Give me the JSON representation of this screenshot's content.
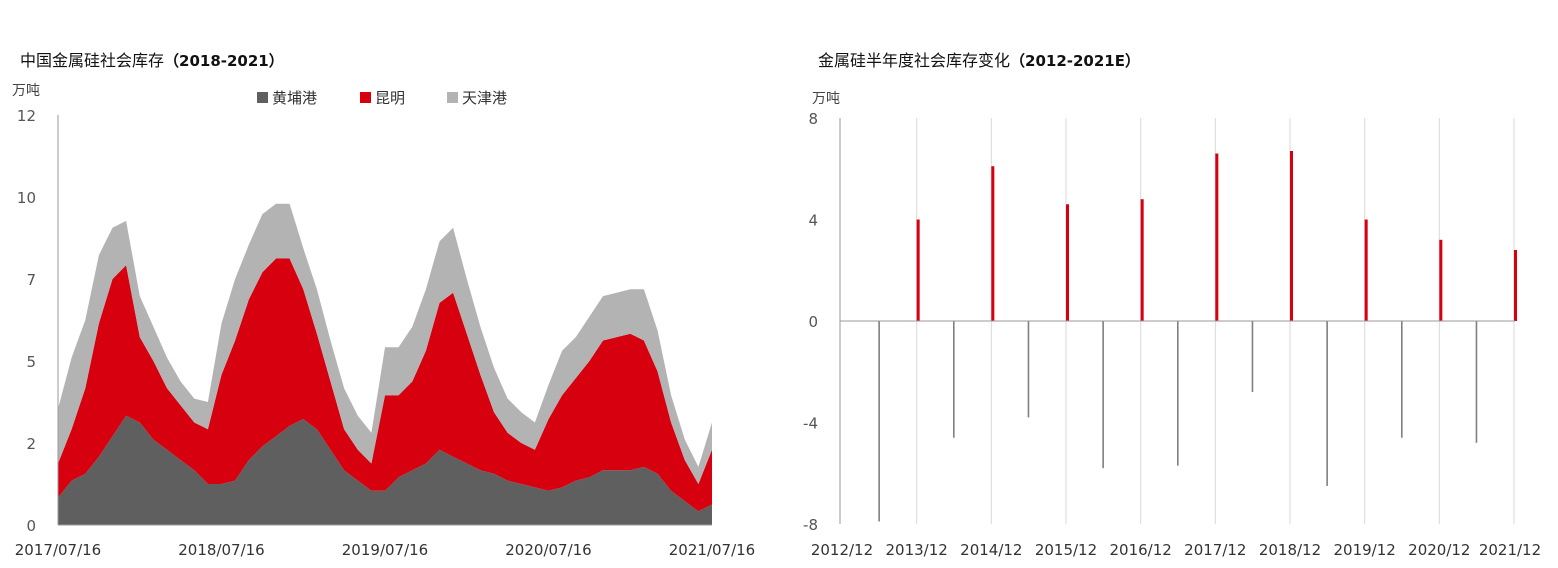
{
  "chart_data": [
    {
      "type": "area",
      "stacked": true,
      "title": "中国金属硅社会库存",
      "title_years": "（2018-2021）",
      "unit": "万吨",
      "ylim": [
        0,
        12
      ],
      "y_ticks": [
        "0",
        "2",
        "5",
        "7",
        "10",
        "12"
      ],
      "y_tick_values": [
        0,
        2.4,
        4.8,
        7.2,
        9.6,
        12
      ],
      "x_ticks": [
        "2017/07/16",
        "2018/07/16",
        "2019/07/16",
        "2020/07/16",
        "2021/07/16"
      ],
      "x_range": [
        "2017/07/16",
        "2021/07/16"
      ],
      "legend_position": "top",
      "x": [
        "2017/07",
        "2017/08",
        "2017/09",
        "2017/10",
        "2017/11",
        "2017/12",
        "2018/01",
        "2018/02",
        "2018/03",
        "2018/04",
        "2018/05",
        "2018/06",
        "2018/07",
        "2018/08",
        "2018/09",
        "2018/10",
        "2018/11",
        "2018/12",
        "2019/01",
        "2019/02",
        "2019/03",
        "2019/04",
        "2019/05",
        "2019/06",
        "2019/07",
        "2019/08",
        "2019/09",
        "2019/10",
        "2019/11",
        "2019/12",
        "2020/01",
        "2020/02",
        "2020/03",
        "2020/04",
        "2020/05",
        "2020/06",
        "2020/07",
        "2020/08",
        "2020/09",
        "2020/10",
        "2020/11",
        "2020/12",
        "2021/01",
        "2021/02",
        "2021/03",
        "2021/04",
        "2021/05",
        "2021/06",
        "2021/07"
      ],
      "series": [
        {
          "name": "黄埔港",
          "color": "#5f5f5f",
          "values": [
            0.8,
            1.3,
            1.5,
            2.0,
            2.6,
            3.2,
            3.0,
            2.5,
            2.2,
            1.9,
            1.6,
            1.2,
            1.2,
            1.3,
            1.9,
            2.3,
            2.6,
            2.9,
            3.1,
            2.8,
            2.2,
            1.6,
            1.3,
            1.0,
            1.0,
            1.4,
            1.6,
            1.8,
            2.2,
            2.0,
            1.8,
            1.6,
            1.5,
            1.3,
            1.2,
            1.1,
            1.0,
            1.1,
            1.3,
            1.4,
            1.6,
            1.6,
            1.6,
            1.7,
            1.5,
            1.0,
            0.7,
            0.4,
            0.6
          ]
        },
        {
          "name": "昆明",
          "color": "#d7000f",
          "values": [
            1.0,
            1.5,
            2.5,
            3.9,
            4.6,
            4.4,
            2.5,
            2.3,
            1.8,
            1.6,
            1.4,
            1.6,
            3.2,
            4.1,
            4.7,
            5.1,
            5.2,
            4.9,
            3.8,
            2.8,
            2.0,
            1.2,
            0.9,
            0.8,
            2.8,
            2.4,
            2.6,
            3.3,
            4.3,
            4.8,
            3.8,
            2.8,
            1.8,
            1.4,
            1.2,
            1.1,
            2.1,
            2.7,
            3.0,
            3.4,
            3.8,
            3.9,
            4.0,
            3.7,
            3.0,
            2.0,
            1.2,
            0.8,
            1.6
          ]
        },
        {
          "name": "天津港",
          "color": "#b3b3b3",
          "values": [
            1.6,
            2.1,
            2.0,
            2.0,
            1.5,
            1.3,
            1.2,
            1.0,
            0.9,
            0.7,
            0.7,
            0.8,
            1.5,
            1.8,
            1.6,
            1.7,
            1.6,
            1.6,
            1.2,
            1.3,
            1.2,
            1.2,
            1.0,
            0.9,
            1.4,
            1.4,
            1.6,
            1.8,
            1.8,
            1.9,
            1.6,
            1.4,
            1.3,
            1.0,
            0.9,
            0.8,
            1.0,
            1.3,
            1.2,
            1.3,
            1.3,
            1.3,
            1.3,
            1.5,
            1.2,
            0.8,
            0.6,
            0.5,
            0.8
          ]
        }
      ]
    },
    {
      "type": "bar",
      "title": "金属硅半年度社会库存变化",
      "title_years": "（2012-2021E）",
      "unit": "万吨",
      "ylim": [
        -8,
        8
      ],
      "y_ticks": [
        "-8",
        "-4",
        "0",
        "4",
        "8"
      ],
      "y_tick_values": [
        -8,
        -4,
        0,
        4,
        8
      ],
      "x_ticks": [
        "2012/12",
        "2013/12",
        "2014/12",
        "2015/12",
        "2016/12",
        "2017/12",
        "2018/12",
        "2019/12",
        "2020/12",
        "2021/12"
      ],
      "categories": [
        "2013/06",
        "2013/12",
        "2014/06",
        "2014/12",
        "2015/06",
        "2015/12",
        "2016/06",
        "2016/12",
        "2017/06",
        "2017/12",
        "2018/06",
        "2018/12",
        "2019/06",
        "2019/12",
        "2020/06",
        "2020/12",
        "2021/06",
        "2021/12"
      ],
      "values": [
        -7.9,
        4.0,
        -4.6,
        6.1,
        -3.8,
        4.6,
        -5.8,
        4.8,
        -5.7,
        6.6,
        -2.8,
        6.7,
        -6.5,
        4.0,
        -4.6,
        3.2,
        -4.8,
        2.8
      ],
      "colors": {
        "positive": "#d7000f",
        "negative": "#808080",
        "grid": "#d9d9d9"
      }
    }
  ]
}
